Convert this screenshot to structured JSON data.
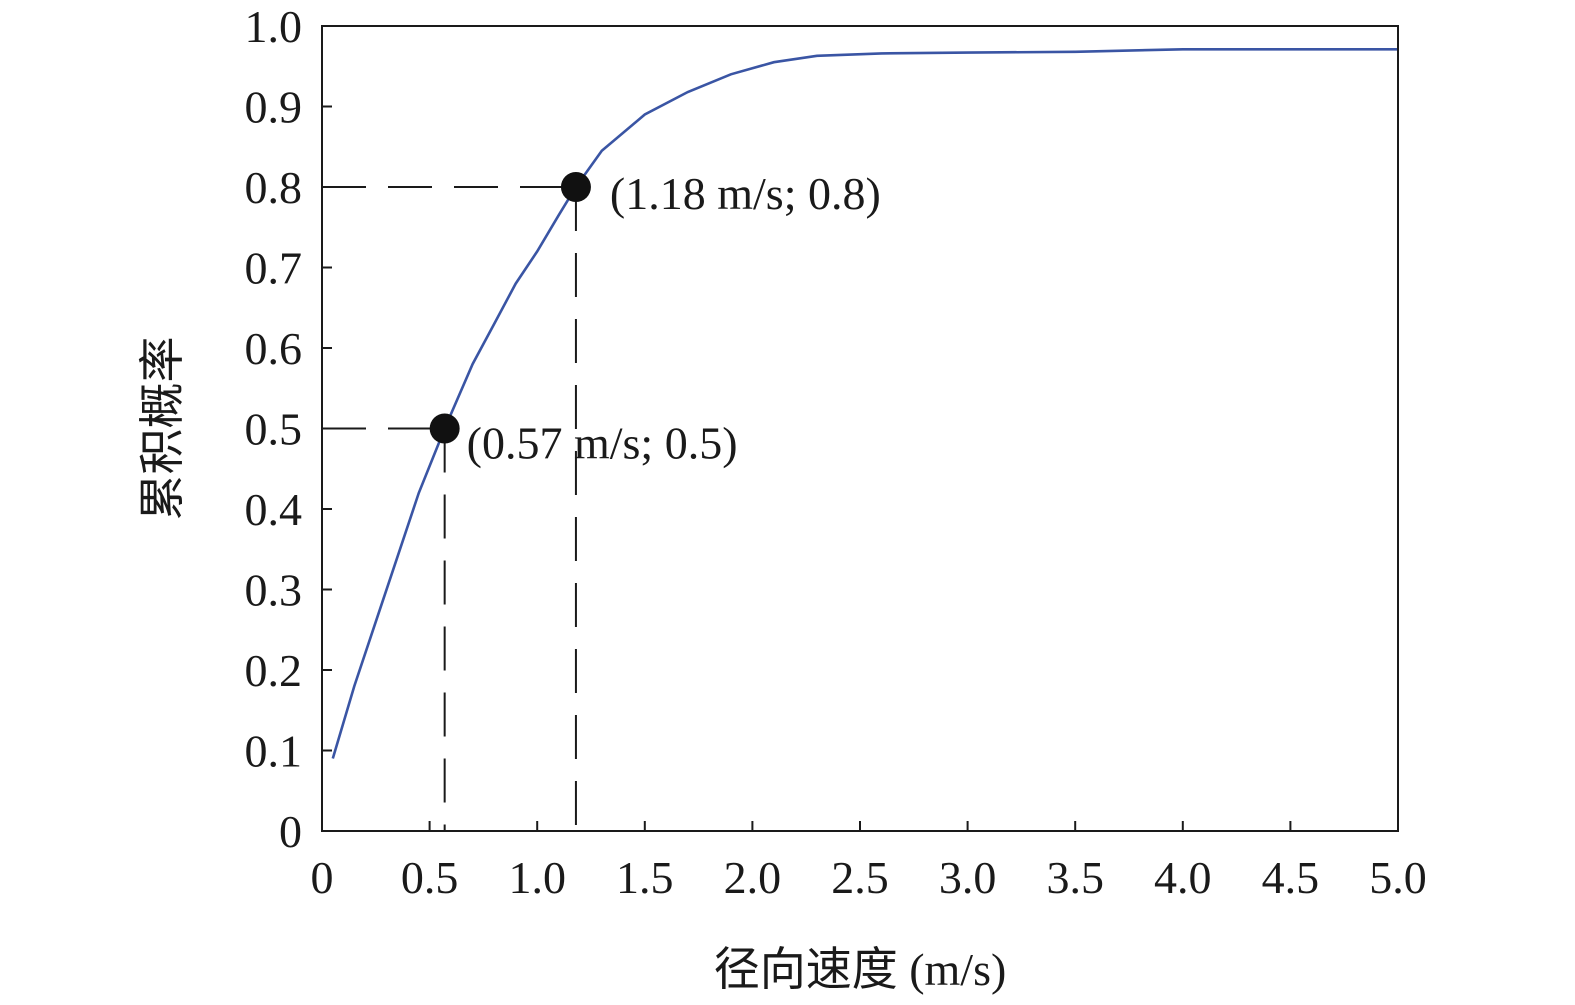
{
  "chart_data": {
    "type": "line",
    "title": "",
    "xlabel": "径向速度 (m/s)",
    "ylabel": "累积概率",
    "xlim": [
      0,
      5.0
    ],
    "ylim": [
      0,
      1.0
    ],
    "x_ticks": [
      0,
      0.5,
      1.0,
      1.5,
      2.0,
      2.5,
      3.0,
      3.5,
      4.0,
      4.5,
      5.0
    ],
    "x_tick_labels": [
      "0",
      "0.5",
      "1.0",
      "1.5",
      "2.0",
      "2.5",
      "3.0",
      "3.5",
      "4.0",
      "4.5",
      "5.0"
    ],
    "y_ticks": [
      0,
      0.1,
      0.2,
      0.3,
      0.4,
      0.5,
      0.6,
      0.7,
      0.8,
      0.9,
      1.0
    ],
    "y_tick_labels": [
      "0",
      "0.1",
      "0.2",
      "0.3",
      "0.4",
      "0.5",
      "0.6",
      "0.7",
      "0.8",
      "0.9",
      "1.0"
    ],
    "grid": false,
    "line_color": "#3a55a4",
    "series": [
      {
        "x": [
          0.05,
          0.15,
          0.25,
          0.35,
          0.45,
          0.57,
          0.7,
          0.8,
          0.9,
          1.0,
          1.1,
          1.18,
          1.3,
          1.5,
          1.7,
          1.9,
          2.1,
          2.3,
          2.6,
          3.0,
          3.5,
          4.0,
          4.5,
          5.0
        ],
        "y": [
          0.09,
          0.18,
          0.26,
          0.34,
          0.42,
          0.5,
          0.58,
          0.63,
          0.68,
          0.72,
          0.765,
          0.8,
          0.845,
          0.89,
          0.918,
          0.94,
          0.955,
          0.963,
          0.966,
          0.967,
          0.968,
          0.971,
          0.971,
          0.971
        ]
      }
    ],
    "annotations": [
      {
        "x": 0.57,
        "y": 0.5,
        "label": "(0.57 m/s; 0.5)"
      },
      {
        "x": 1.18,
        "y": 0.8,
        "label": "(1.18 m/s; 0.8)"
      }
    ]
  }
}
